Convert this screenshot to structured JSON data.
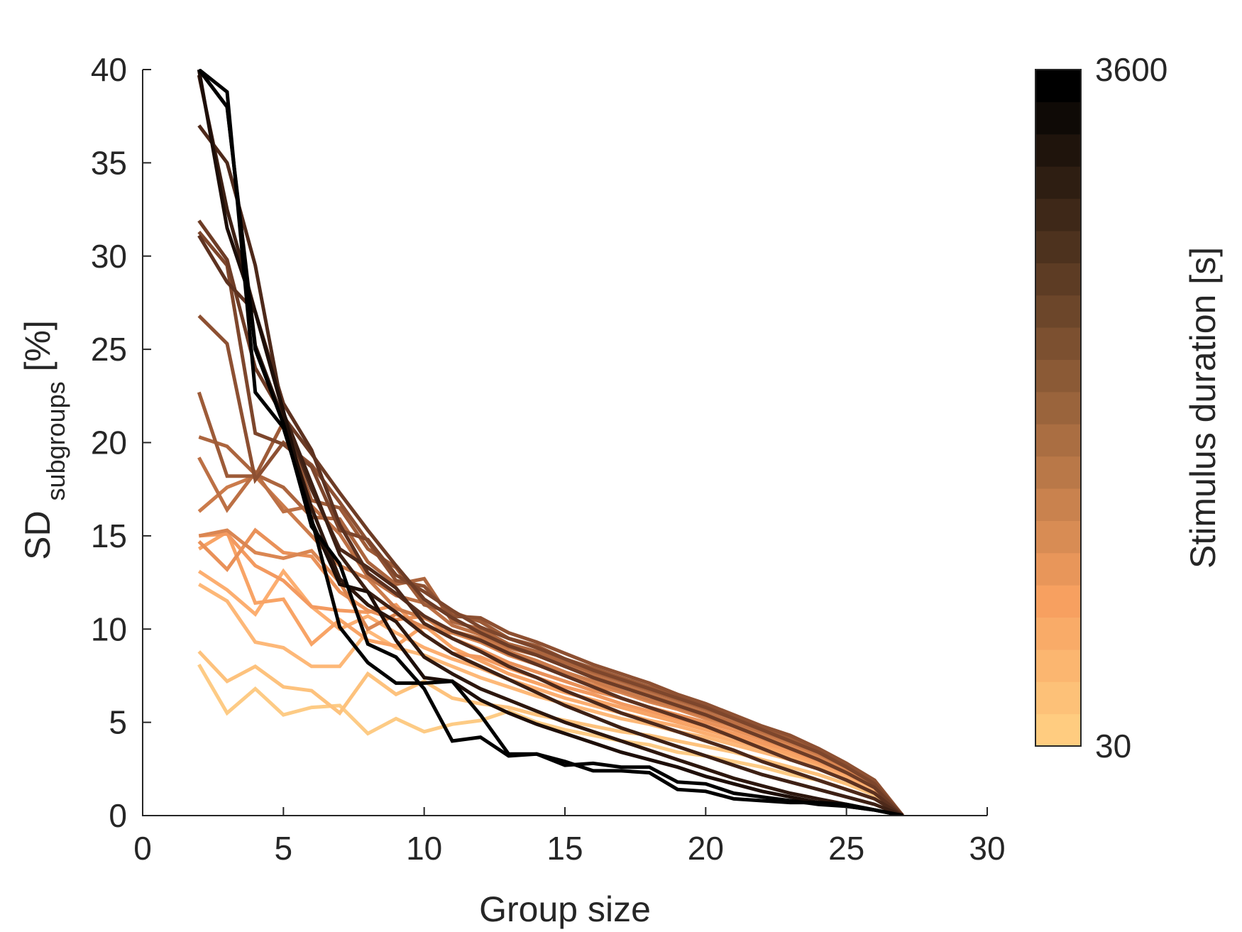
{
  "chart_data": {
    "type": "line",
    "xlabel": "Group size",
    "ylabel_main": "SD",
    "ylabel_sub": "subgroups",
    "ylabel_unit": "[%]",
    "xlim": [
      0,
      30
    ],
    "ylim": [
      0,
      40
    ],
    "xticks": [
      0,
      5,
      10,
      15,
      20,
      25,
      30
    ],
    "yticks": [
      0,
      5,
      10,
      15,
      20,
      25,
      30,
      35,
      40
    ],
    "grid": false,
    "colorbar": {
      "label": "Stimulus duration [s]",
      "min_label": "30",
      "max_label": "3600",
      "levels": 21,
      "color_low": "#FFCC80",
      "color_mid": "#F7A060",
      "color_high": "#000000"
    },
    "x": [
      2,
      3,
      4,
      5,
      6,
      7,
      8,
      9,
      10,
      11,
      12,
      13,
      14,
      15,
      16,
      17,
      18,
      19,
      20,
      21,
      22,
      23,
      24,
      25,
      26,
      27
    ],
    "series": [
      {
        "color": "#FDCB85",
        "values": [
          8.1,
          5.5,
          6.8,
          5.4,
          5.8,
          5.9,
          4.4,
          5.2,
          4.5,
          4.9,
          5.1,
          5.6,
          5.0,
          4.6,
          4.3,
          4.0,
          3.8,
          3.4,
          3.2,
          2.9,
          2.6,
          2.2,
          1.9,
          1.4,
          0.9,
          0
        ]
      },
      {
        "color": "#FDC27D",
        "values": [
          8.8,
          7.2,
          8.0,
          6.9,
          6.7,
          5.5,
          7.6,
          6.5,
          7.2,
          6.3,
          6.0,
          5.8,
          5.4,
          5.1,
          4.8,
          4.5,
          4.3,
          4.0,
          3.7,
          3.4,
          3.0,
          2.6,
          2.2,
          1.7,
          1.1,
          0
        ]
      },
      {
        "color": "#FDB878",
        "values": [
          12.4,
          11.5,
          9.3,
          9.0,
          8.0,
          8.0,
          9.9,
          9.0,
          8.6,
          8.0,
          7.4,
          6.9,
          6.4,
          6.0,
          5.6,
          5.2,
          4.9,
          4.5,
          4.2,
          3.8,
          3.4,
          3.0,
          2.6,
          2.0,
          1.3,
          0
        ]
      },
      {
        "color": "#FCAE70",
        "values": [
          13.1,
          12.1,
          10.8,
          13.1,
          11.2,
          10.0,
          10.7,
          9.8,
          9.0,
          8.4,
          7.9,
          7.3,
          6.8,
          6.3,
          5.9,
          5.5,
          5.1,
          4.8,
          4.4,
          4.0,
          3.6,
          3.2,
          2.7,
          2.1,
          1.4,
          0
        ]
      },
      {
        "color": "#F8A466",
        "values": [
          14.3,
          15.2,
          11.4,
          11.6,
          9.2,
          10.5,
          9.4,
          9.1,
          10.2,
          9.0,
          8.3,
          7.6,
          7.1,
          6.6,
          6.2,
          5.8,
          5.4,
          5.0,
          4.6,
          4.2,
          3.8,
          3.3,
          2.8,
          2.2,
          1.5,
          0
        ]
      },
      {
        "color": "#F39A60",
        "values": [
          15.0,
          15.1,
          13.4,
          12.6,
          11.2,
          11.0,
          10.9,
          11.3,
          9.7,
          8.7,
          8.5,
          7.9,
          7.4,
          6.9,
          6.5,
          6.0,
          5.6,
          5.2,
          4.8,
          4.4,
          3.9,
          3.5,
          2.9,
          2.3,
          1.5,
          0
        ]
      },
      {
        "color": "#E99159",
        "values": [
          14.7,
          13.2,
          15.3,
          14.1,
          13.9,
          12.0,
          11.0,
          10.5,
          10.7,
          9.5,
          8.9,
          8.2,
          7.7,
          7.2,
          6.7,
          6.3,
          5.8,
          5.4,
          5.0,
          4.6,
          4.1,
          3.6,
          3.1,
          2.4,
          1.6,
          0
        ]
      },
      {
        "color": "#DA8652",
        "values": [
          15.0,
          15.3,
          14.1,
          13.8,
          14.2,
          12.5,
          10.0,
          10.8,
          10.1,
          9.8,
          9.3,
          8.6,
          8.1,
          7.5,
          7.0,
          6.6,
          6.1,
          5.7,
          5.2,
          4.8,
          4.3,
          3.8,
          3.2,
          2.5,
          1.7,
          0
        ]
      },
      {
        "color": "#CB7B4B",
        "values": [
          16.3,
          17.6,
          18.2,
          16.6,
          15.0,
          13.4,
          12.7,
          11.1,
          10.6,
          9.9,
          9.5,
          8.8,
          8.3,
          7.7,
          7.2,
          6.7,
          6.2,
          5.8,
          5.3,
          4.9,
          4.4,
          3.9,
          3.3,
          2.6,
          1.7,
          0
        ]
      },
      {
        "color": "#BC7045",
        "values": [
          19.2,
          16.4,
          18.4,
          16.3,
          16.6,
          15.1,
          12.8,
          11.8,
          11.4,
          10.2,
          9.7,
          9.0,
          8.6,
          8.0,
          7.5,
          7.0,
          6.5,
          6.0,
          5.5,
          5.0,
          4.5,
          4.0,
          3.4,
          2.7,
          1.8,
          0
        ]
      },
      {
        "color": "#AC653E",
        "values": [
          20.3,
          19.8,
          18.3,
          17.6,
          16.0,
          15.9,
          13.6,
          12.4,
          12.7,
          10.4,
          10.0,
          9.2,
          8.8,
          8.2,
          7.7,
          7.2,
          6.7,
          6.2,
          5.7,
          5.2,
          4.6,
          4.1,
          3.5,
          2.7,
          1.8,
          0
        ]
      },
      {
        "color": "#9D5B38",
        "values": [
          22.7,
          18.2,
          18.2,
          21.1,
          16.9,
          16.5,
          14.3,
          13.3,
          11.3,
          10.9,
          10.4,
          9.5,
          9.1,
          8.4,
          7.9,
          7.4,
          6.9,
          6.4,
          5.9,
          5.3,
          4.7,
          4.2,
          3.6,
          2.8,
          1.8,
          0
        ]
      },
      {
        "color": "#8D5032",
        "values": [
          26.8,
          25.3,
          18.0,
          20.0,
          18.8,
          16.8,
          14.7,
          12.6,
          12.3,
          10.7,
          10.6,
          9.8,
          9.3,
          8.7,
          8.1,
          7.6,
          7.1,
          6.5,
          6.0,
          5.4,
          4.8,
          4.3,
          3.6,
          2.8,
          1.9,
          0
        ]
      },
      {
        "color": "#7D462C",
        "values": [
          31.3,
          29.5,
          20.5,
          19.9,
          18.7,
          15.3,
          14.8,
          12.9,
          12.0,
          11.0,
          10.1,
          9.5,
          9.0,
          8.4,
          7.8,
          7.3,
          6.8,
          6.3,
          5.8,
          5.2,
          4.6,
          4.0,
          3.4,
          2.6,
          1.7,
          0
        ]
      },
      {
        "color": "#6D3C26",
        "values": [
          31.9,
          29.8,
          24.0,
          21.4,
          19.4,
          17.3,
          15.3,
          13.4,
          11.6,
          10.6,
          9.8,
          9.1,
          8.6,
          8.0,
          7.4,
          6.9,
          6.4,
          5.9,
          5.4,
          4.8,
          4.2,
          3.6,
          3.0,
          2.3,
          1.5,
          0
        ]
      },
      {
        "color": "#5D3220",
        "values": [
          31.1,
          28.6,
          27.0,
          22.1,
          19.6,
          15.6,
          13.0,
          11.9,
          10.7,
          9.9,
          9.4,
          8.7,
          8.1,
          7.5,
          6.9,
          6.3,
          5.8,
          5.3,
          4.8,
          4.2,
          3.6,
          3.0,
          2.5,
          1.9,
          1.2,
          0
        ]
      },
      {
        "color": "#4D291A",
        "values": [
          37.0,
          35.0,
          29.5,
          21.5,
          17.5,
          14.3,
          13.3,
          12.2,
          10.3,
          9.5,
          8.8,
          8.0,
          7.4,
          6.7,
          6.1,
          5.5,
          5.0,
          4.5,
          4.0,
          3.5,
          2.9,
          2.4,
          1.9,
          1.4,
          0.9,
          0
        ]
      },
      {
        "color": "#3D2014",
        "values": [
          39.7,
          32.5,
          27.0,
          21.6,
          17.8,
          14.0,
          12.0,
          10.9,
          9.7,
          8.7,
          8.0,
          7.3,
          6.6,
          5.9,
          5.3,
          4.7,
          4.2,
          3.7,
          3.2,
          2.7,
          2.2,
          1.8,
          1.4,
          1.0,
          0.6,
          0
        ]
      },
      {
        "color": "#2D170E",
        "values": [
          40.0,
          38.0,
          25.2,
          21.2,
          16.5,
          12.7,
          11.3,
          10.4,
          8.5,
          7.6,
          6.8,
          6.2,
          5.6,
          5.0,
          4.5,
          4.0,
          3.5,
          3.0,
          2.5,
          2.0,
          1.6,
          1.2,
          0.9,
          0.6,
          0.3,
          0
        ]
      },
      {
        "color": "#1D0E08",
        "values": [
          40.0,
          31.5,
          27.0,
          21.7,
          15.8,
          12.4,
          12.0,
          9.4,
          7.4,
          7.2,
          6.2,
          5.5,
          4.9,
          4.4,
          3.9,
          3.4,
          3.0,
          2.6,
          2.1,
          1.7,
          1.3,
          1.0,
          0.7,
          0.5,
          0.3,
          0
        ]
      },
      {
        "color": "#000000",
        "values": [
          40.0,
          38.8,
          22.7,
          20.8,
          15.9,
          10.1,
          8.2,
          7.1,
          7.1,
          7.2,
          5.4,
          3.3,
          3.3,
          2.9,
          2.4,
          2.4,
          2.3,
          1.4,
          1.3,
          0.9,
          0.8,
          0.7,
          0.7,
          0.6,
          0.3,
          0
        ]
      },
      {
        "color": "#000000",
        "values": [
          40.0,
          38.0,
          25.0,
          21.0,
          15.5,
          13.5,
          9.2,
          8.5,
          6.8,
          4.0,
          4.2,
          3.2,
          3.3,
          2.7,
          2.8,
          2.6,
          2.6,
          1.8,
          1.7,
          1.2,
          1.0,
          0.8,
          0.6,
          0.5,
          0.3,
          0
        ]
      }
    ]
  }
}
